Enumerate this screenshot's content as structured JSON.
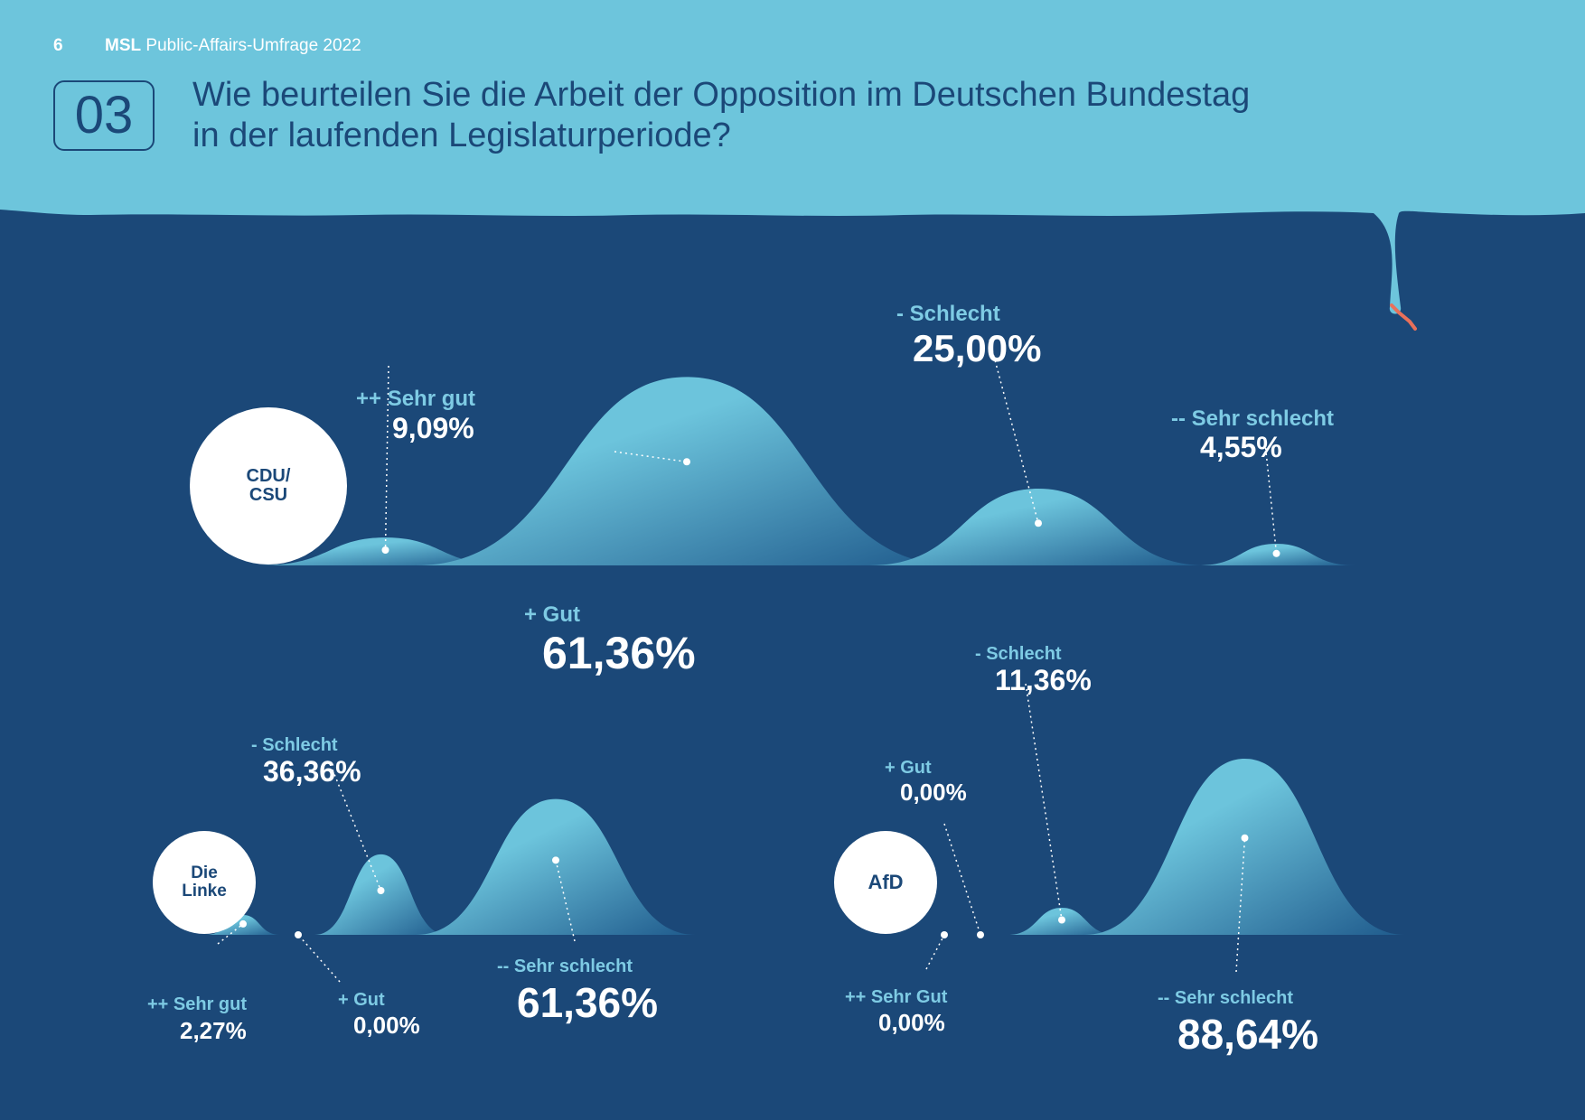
{
  "header": {
    "page_number": "6",
    "brand": "MSL",
    "report_title": "Public-Affairs-Umfrage 2022",
    "question_number": "03",
    "question_line1": "Wie beurteilen Sie die Arbeit der Opposition im Deutschen Bundestag",
    "question_line2": "in der laufenden Legislaturperiode?"
  },
  "colors": {
    "header_bg": "#6dc5dc",
    "dark_bg": "#1b4878",
    "hill_light": "#6cc4dc",
    "hill_dark": "#1f5a8c",
    "label": "#7ecbe4",
    "value": "#ffffff"
  },
  "chart_data": [
    {
      "type": "area",
      "party": "CDU/\nCSU",
      "categories": [
        "++ Sehr gut",
        "+ Gut",
        "- Schlecht",
        "-- Sehr schlecht"
      ],
      "values": [
        9.09,
        61.36,
        25.0,
        4.55
      ],
      "value_labels": [
        "9,09%",
        "61,36%",
        "25,00%",
        "4,55%"
      ]
    },
    {
      "type": "area",
      "party": "Die\nLinke",
      "categories": [
        "++ Sehr gut",
        "+ Gut",
        "- Schlecht",
        "-- Sehr schlecht"
      ],
      "values": [
        2.27,
        0.0,
        36.36,
        61.36
      ],
      "value_labels": [
        "2,27%",
        "0,00%",
        "36,36%",
        "61,36%"
      ]
    },
    {
      "type": "area",
      "party": "AfD",
      "categories": [
        "++ Sehr Gut",
        "+ Gut",
        "- Schlecht",
        "-- Sehr schlecht"
      ],
      "values": [
        0.0,
        0.0,
        11.36,
        88.64
      ],
      "value_labels": [
        "0,00%",
        "0,00%",
        "11,36%",
        "88,64%"
      ]
    }
  ]
}
